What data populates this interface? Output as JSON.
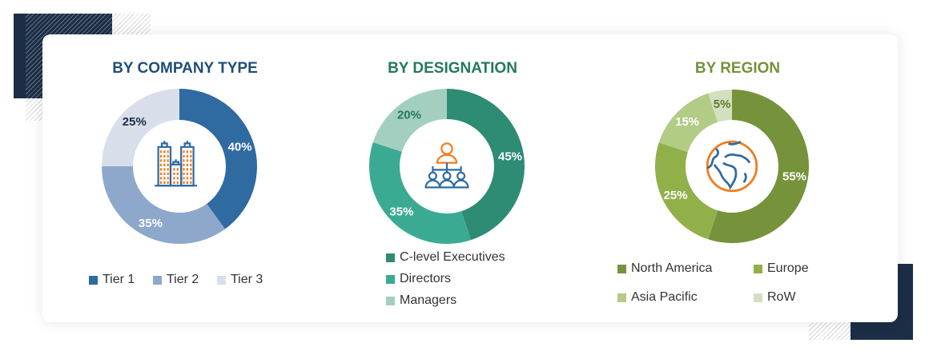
{
  "chart_data": [
    {
      "type": "pie",
      "title": "BY COMPANY TYPE",
      "title_color": "#1f4e79",
      "categories": [
        "Tier 1",
        "Tier 2",
        "Tier 3"
      ],
      "values": [
        40,
        35,
        25
      ],
      "labels": [
        "40%",
        "35%",
        "25%"
      ],
      "colors": [
        "#2f6aa1",
        "#8ea8cb",
        "#d8dfeb"
      ],
      "label_colors": [
        "#ffffff",
        "#ffffff",
        "#1b2e45"
      ],
      "center_icon": "buildings-icon",
      "legend_placement": "bottom"
    },
    {
      "type": "pie",
      "title": "BY DESIGNATION",
      "title_color": "#22795c",
      "categories": [
        "C-level Executives",
        "Directors",
        "Managers"
      ],
      "values": [
        45,
        35,
        20
      ],
      "labels": [
        "45%",
        "35%",
        "20%"
      ],
      "colors": [
        "#2e8b74",
        "#3aab92",
        "#a3cfc1"
      ],
      "label_colors": [
        "#ffffff",
        "#ffffff",
        "#22795c"
      ],
      "center_icon": "org-hierarchy-icon",
      "legend_placement": "bottom"
    },
    {
      "type": "pie",
      "title": "BY REGION",
      "title_color": "#76923b",
      "categories": [
        "North America",
        "Europe",
        "Asia Pacific",
        "RoW"
      ],
      "values": [
        55,
        25,
        15,
        5
      ],
      "labels": [
        "55%",
        "25%",
        "15%",
        "5%"
      ],
      "colors": [
        "#76923b",
        "#92b04a",
        "#b2cb85",
        "#d3e0bf"
      ],
      "label_colors": [
        "#ffffff",
        "#ffffff",
        "#ffffff",
        "#5d7a2c"
      ],
      "center_icon": "globe-icon",
      "legend_placement": "bottom"
    }
  ]
}
